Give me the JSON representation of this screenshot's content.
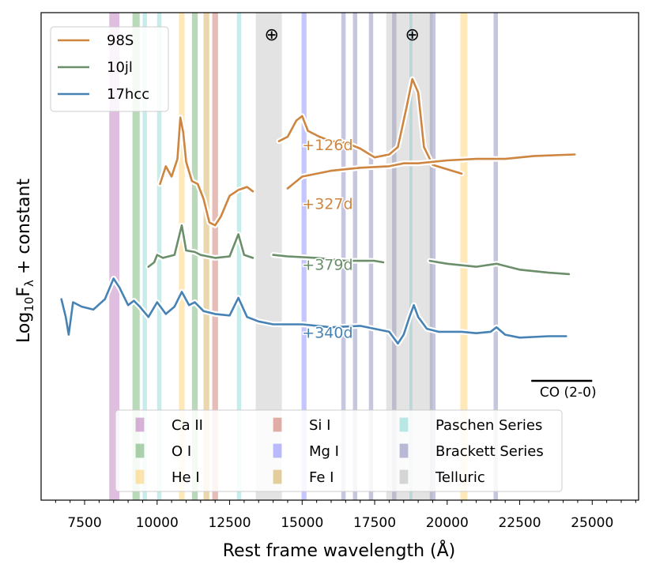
{
  "chart_data": {
    "type": "line",
    "xlabel": "Rest frame wavelength (Å)",
    "ylabel_main": "Log",
    "ylabel_sub": "10",
    "ylabel_F": "F",
    "ylabel_lambda": "λ",
    "ylabel_rest": " + constant",
    "xlim": [
      6000,
      26600
    ],
    "x_ticks": [
      7500,
      10000,
      12500,
      15000,
      17500,
      20000,
      22500,
      25000
    ],
    "x_tick_labels": [
      "7500",
      "10000",
      "12500",
      "15000",
      "17500",
      "20000",
      "22500",
      "25000"
    ],
    "legend_series": [
      {
        "name": "98S",
        "color": "#cd853f"
      },
      {
        "name": "10jl",
        "color": "#6b8e6b"
      },
      {
        "name": "17hcc",
        "color": "#4682b4"
      }
    ],
    "line_bands": [
      {
        "name": "Ca II",
        "color": "#aa55aa",
        "ranges": [
          [
            8350,
            8700
          ]
        ]
      },
      {
        "name": "O I",
        "color": "#4a9a4a",
        "ranges": [
          [
            9150,
            9400
          ],
          [
            11200,
            11400
          ]
        ]
      },
      {
        "name": "He I",
        "color": "#ffc44d",
        "ranges": [
          [
            10750,
            10950
          ],
          [
            20450,
            20700
          ]
        ]
      },
      {
        "name": "Si I",
        "color": "#c05040",
        "ranges": [
          [
            11900,
            12100
          ]
        ]
      },
      {
        "name": "Mg I",
        "color": "#6a6aff",
        "ranges": [
          [
            14980,
            15150
          ]
        ]
      },
      {
        "name": "Fe I",
        "color": "#c8962a",
        "ranges": [
          [
            11600,
            11800
          ]
        ]
      },
      {
        "name": "Paschen Series",
        "color": "#6ad0c8",
        "ranges": [
          [
            9500,
            9650
          ],
          [
            10000,
            10150
          ],
          [
            12750,
            12900
          ],
          [
            18700,
            18800
          ]
        ]
      },
      {
        "name": "Brackett Series",
        "color": "#6a6aaa",
        "ranges": [
          [
            16350,
            16500
          ],
          [
            16750,
            16900
          ],
          [
            17300,
            17450
          ],
          [
            18100,
            18250
          ],
          [
            19400,
            19600
          ],
          [
            21600,
            21750
          ]
        ]
      },
      {
        "name": "Telluric",
        "color": "#a8a8a8",
        "ranges": [
          [
            13400,
            14300
          ],
          [
            17900,
            19500
          ]
        ]
      }
    ],
    "telluric_markers": [
      {
        "symbol": "⊕",
        "x": 13950
      },
      {
        "symbol": "⊕",
        "x": 18800
      }
    ],
    "annotation": {
      "text": "CO (2-0)",
      "x_range": [
        22900,
        25000
      ]
    },
    "series": [
      {
        "name": "98S",
        "label": "+126d",
        "color": "#cd853f",
        "label_x": 15000,
        "label_y": 0.3,
        "segments": [
          [
            [
              14200,
              0.9
            ],
            [
              14500,
              1.2
            ],
            [
              14800,
              2.3
            ],
            [
              15000,
              2.6
            ],
            [
              15200,
              1.6
            ],
            [
              15600,
              1.2
            ],
            [
              16000,
              0.9
            ],
            [
              16500,
              0.8
            ],
            [
              17000,
              0.4
            ],
            [
              17500,
              -0.2
            ],
            [
              18000,
              0.0
            ],
            [
              18300,
              0.5
            ],
            [
              18600,
              3.2
            ],
            [
              18800,
              5.1
            ],
            [
              19000,
              4.2
            ],
            [
              19200,
              0.5
            ],
            [
              19500,
              -0.7
            ],
            [
              20000,
              -1.0
            ],
            [
              20500,
              -1.3
            ]
          ]
        ]
      },
      {
        "name": "98S",
        "label": "+327d",
        "color": "#cd853f",
        "label_x": 15000,
        "label_y": -3.7,
        "segments": [
          [
            [
              10100,
              -2.0
            ],
            [
              10300,
              -0.8
            ],
            [
              10500,
              -1.5
            ],
            [
              10700,
              -0.3
            ],
            [
              10800,
              2.5
            ],
            [
              10900,
              1.5
            ],
            [
              11000,
              -0.5
            ],
            [
              11200,
              -1.8
            ],
            [
              11400,
              -2.0
            ],
            [
              11600,
              -3.0
            ],
            [
              11800,
              -4.6
            ],
            [
              12000,
              -4.8
            ],
            [
              12200,
              -4.2
            ],
            [
              12500,
              -2.8
            ],
            [
              12800,
              -2.4
            ],
            [
              13100,
              -2.2
            ],
            [
              13300,
              -2.5
            ]
          ],
          [
            [
              14500,
              -2.3
            ],
            [
              15000,
              -1.5
            ],
            [
              16000,
              -1.1
            ],
            [
              17000,
              -0.9
            ],
            [
              18000,
              -0.8
            ],
            [
              18500,
              -0.6
            ],
            [
              19000,
              -0.6
            ],
            [
              20000,
              -0.4
            ],
            [
              21000,
              -0.3
            ],
            [
              22000,
              -0.3
            ],
            [
              23000,
              -0.1
            ],
            [
              24400,
              0.0
            ]
          ]
        ]
      },
      {
        "name": "10jl",
        "label": "+379d",
        "color": "#6b8e6b",
        "label_x": 15000,
        "label_y": -7.8,
        "segments": [
          [
            [
              9700,
              -7.6
            ],
            [
              9900,
              -7.3
            ],
            [
              10000,
              -6.8
            ],
            [
              10200,
              -7.0
            ],
            [
              10600,
              -6.8
            ],
            [
              10850,
              -4.8
            ],
            [
              11000,
              -6.5
            ],
            [
              11300,
              -6.6
            ],
            [
              11500,
              -6.8
            ],
            [
              12000,
              -7.0
            ],
            [
              12500,
              -6.9
            ],
            [
              12800,
              -5.4
            ],
            [
              13000,
              -6.8
            ],
            [
              13300,
              -7.0
            ]
          ],
          [
            [
              14000,
              -6.8
            ],
            [
              14500,
              -6.9
            ],
            [
              15500,
              -7.0
            ],
            [
              16500,
              -7.2
            ],
            [
              17500,
              -7.2
            ],
            [
              17800,
              -7.3
            ]
          ],
          [
            [
              19400,
              -7.2
            ],
            [
              20000,
              -7.4
            ],
            [
              21000,
              -7.6
            ],
            [
              21700,
              -7.4
            ],
            [
              22500,
              -7.8
            ],
            [
              23500,
              -8.0
            ],
            [
              24200,
              -8.1
            ]
          ]
        ]
      },
      {
        "name": "17hcc",
        "label": "+340d",
        "color": "#4682b4",
        "label_x": 15000,
        "label_y": -12.4,
        "segments": [
          [
            [
              6700,
              -9.8
            ],
            [
              6850,
              -11.0
            ],
            [
              6950,
              -12.2
            ],
            [
              7100,
              -10.0
            ],
            [
              7400,
              -10.3
            ],
            [
              7800,
              -10.5
            ],
            [
              8200,
              -9.8
            ],
            [
              8500,
              -8.4
            ],
            [
              8700,
              -9.0
            ],
            [
              9000,
              -10.2
            ],
            [
              9200,
              -9.9
            ],
            [
              9400,
              -10.3
            ],
            [
              9700,
              -11.0
            ],
            [
              10000,
              -10.0
            ],
            [
              10300,
              -10.8
            ],
            [
              10600,
              -10.3
            ],
            [
              10850,
              -9.3
            ],
            [
              11100,
              -10.2
            ],
            [
              11300,
              -10.0
            ],
            [
              11600,
              -10.6
            ],
            [
              12000,
              -10.8
            ],
            [
              12500,
              -10.9
            ],
            [
              12800,
              -9.7
            ],
            [
              13100,
              -11.0
            ],
            [
              13500,
              -11.3
            ],
            [
              14000,
              -11.5
            ],
            [
              15000,
              -11.5
            ],
            [
              16000,
              -11.7
            ],
            [
              17000,
              -11.6
            ],
            [
              17500,
              -11.8
            ],
            [
              18000,
              -12.0
            ],
            [
              18300,
              -12.8
            ],
            [
              18500,
              -12.2
            ],
            [
              18700,
              -11.0
            ],
            [
              18850,
              -10.2
            ],
            [
              19000,
              -11.0
            ],
            [
              19300,
              -11.8
            ],
            [
              19700,
              -12.0
            ],
            [
              20500,
              -12.0
            ],
            [
              21000,
              -12.1
            ],
            [
              21500,
              -12.0
            ],
            [
              21700,
              -11.7
            ],
            [
              22000,
              -12.2
            ],
            [
              22500,
              -12.4
            ],
            [
              23500,
              -12.3
            ],
            [
              24100,
              -12.3
            ]
          ]
        ]
      }
    ]
  }
}
